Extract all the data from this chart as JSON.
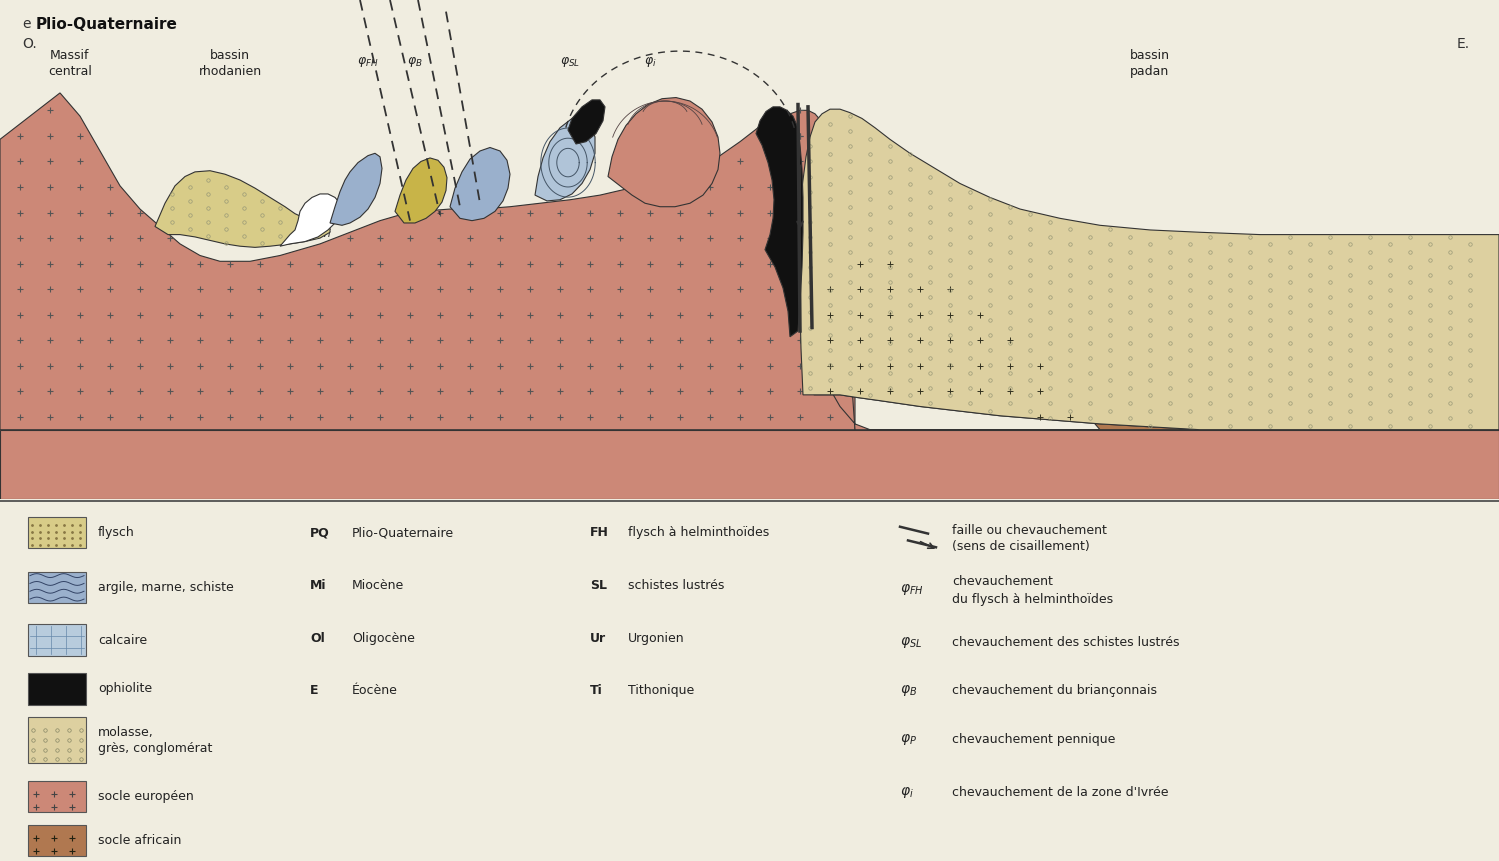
{
  "bg_color": "#f0ede0",
  "diagram_bg": "#f0ede0",
  "socle_color": "#cc8877",
  "socle_africain_color": "#b07850",
  "molasse_color": "#d8cc88",
  "molasse_padan_color": "#ddd0a0",
  "argile_color": "#9ab0cc",
  "calcaire_color": "#b8ccdd",
  "ophiolite_color": "#111111",
  "white_color": "#ffffff",
  "flysch_fh_color": "#c8b448",
  "sl_color": "#b0c4d8",
  "line_color": "#333333",
  "plus_color": "#555555",
  "title_e": "e",
  "title_pq": "Plio-Quaternaire",
  "label_O": "O.",
  "label_E": "E.",
  "label_massif": "Massif\ncentral",
  "label_bassin_rh": "bassin\nrhodanien",
  "label_bassin_pa": "bassin\npadan"
}
